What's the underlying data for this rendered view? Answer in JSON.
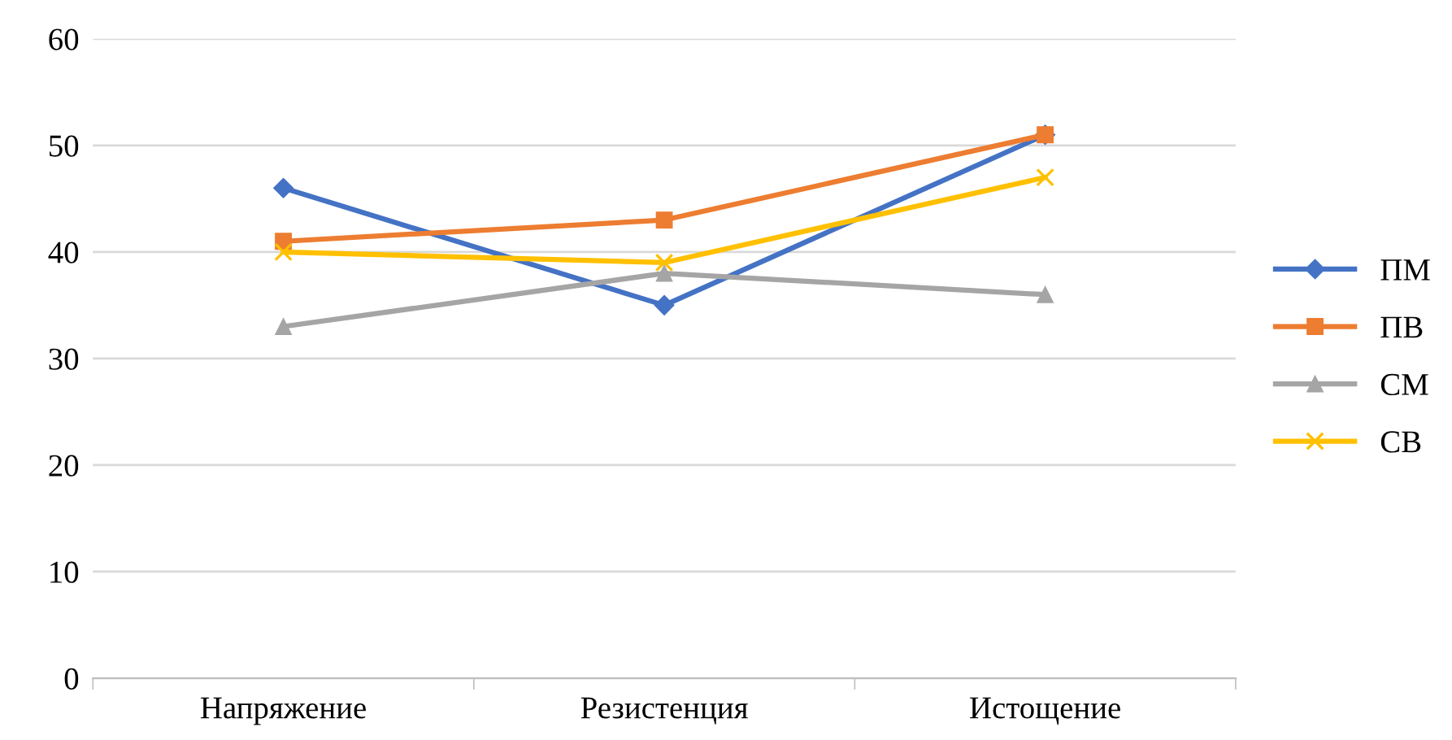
{
  "chart_data": {
    "type": "line",
    "categories": [
      "Напряжение",
      "Резистенция",
      "Истощение"
    ],
    "series": [
      {
        "name": "ПМ",
        "color": "#4472c4",
        "marker": "diamond",
        "values": [
          46,
          35,
          51
        ]
      },
      {
        "name": "ПВ",
        "color": "#ed7d31",
        "marker": "square",
        "values": [
          41,
          43,
          51
        ]
      },
      {
        "name": "СМ",
        "color": "#a5a5a5",
        "marker": "triangle",
        "values": [
          33,
          38,
          36
        ]
      },
      {
        "name": "СВ",
        "color": "#ffc000",
        "marker": "cross",
        "values": [
          40,
          39,
          47
        ]
      }
    ],
    "ylim": [
      0,
      60
    ],
    "yticks": [
      0,
      10,
      20,
      30,
      40,
      50,
      60
    ],
    "grid": "y",
    "legend": "right",
    "line_style": "solid"
  }
}
